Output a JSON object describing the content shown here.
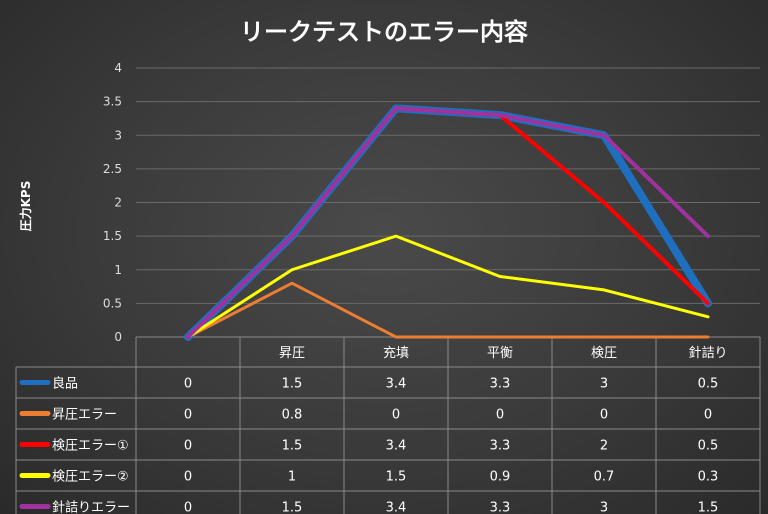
{
  "chart_data": {
    "type": "line",
    "title": "リークテストのエラー内容",
    "ylabel": "圧力KPS",
    "ylim": [
      0,
      4
    ],
    "yticks": [
      "0",
      "0.5",
      "1",
      "1.5",
      "2",
      "2.5",
      "3",
      "3.5",
      "4"
    ],
    "grid": true,
    "legend_placement": "data-table-left",
    "categories": [
      "",
      "昇圧",
      "充填",
      "平衡",
      "検圧",
      "針詰り"
    ],
    "series": [
      {
        "name": "良品",
        "color": "#1f6fc0",
        "values": [
          0,
          1.5,
          3.4,
          3.3,
          3,
          0.5
        ],
        "labels": [
          "0",
          "1.5",
          "3.4",
          "3.3",
          "3",
          "0.5"
        ]
      },
      {
        "name": "昇圧エラー",
        "color": "#ed7d31",
        "values": [
          0,
          0.8,
          0,
          0,
          0,
          0
        ],
        "labels": [
          "0",
          "0.8",
          "0",
          "0",
          "0",
          "0"
        ]
      },
      {
        "name": "検圧エラー①",
        "color": "#ff0000",
        "values": [
          0,
          1.5,
          3.4,
          3.3,
          2,
          0.5
        ],
        "labels": [
          "0",
          "1.5",
          "3.4",
          "3.3",
          "2",
          "0.5"
        ]
      },
      {
        "name": "検圧エラー②",
        "color": "#ffff00",
        "values": [
          0,
          1,
          1.5,
          0.9,
          0.7,
          0.3
        ],
        "labels": [
          "0",
          "1",
          "1.5",
          "0.9",
          "0.7",
          "0.3"
        ]
      },
      {
        "name": "針詰りエラー",
        "color": "#a032a0",
        "values": [
          0,
          1.5,
          3.4,
          3.3,
          3,
          1.5
        ],
        "labels": [
          "0",
          "1.5",
          "3.4",
          "3.3",
          "3",
          "1.5"
        ]
      }
    ]
  }
}
